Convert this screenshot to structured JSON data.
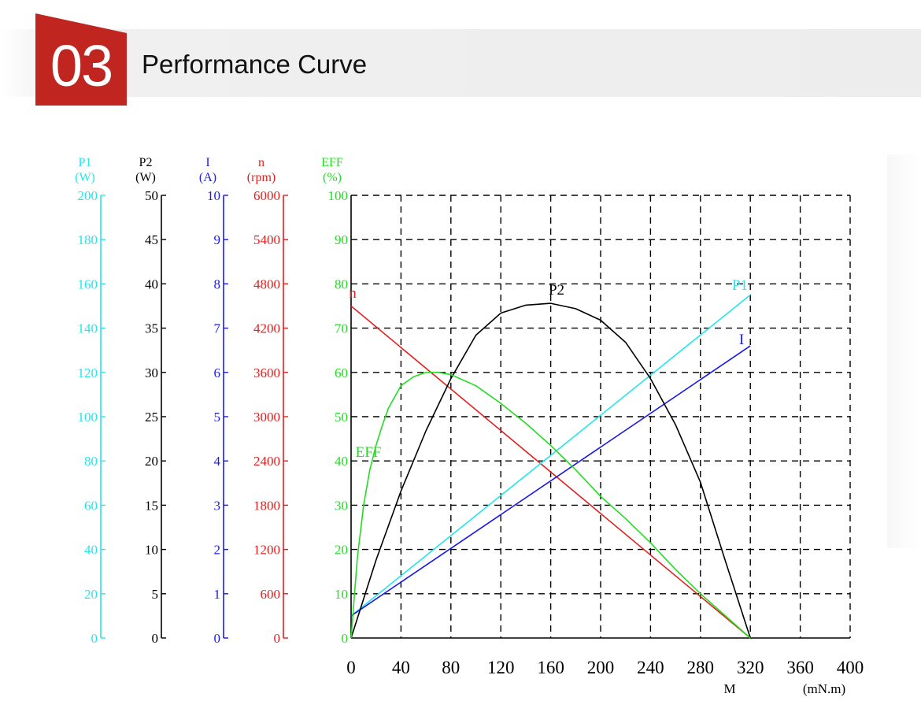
{
  "header": {
    "section_number": "03",
    "title": "Performance Curve",
    "badge_color": "#c0251f"
  },
  "colors": {
    "p1": "#25e6ee",
    "p2": "#000000",
    "i": "#1a1ae6",
    "n": "#e11f1f",
    "eff": "#22dd22"
  },
  "chart_data": {
    "type": "line",
    "x_axis": {
      "name": "M",
      "unit": "(mN.m)",
      "range": [
        0,
        400
      ],
      "ticks": [
        "0",
        "40",
        "80",
        "120",
        "160",
        "200",
        "240",
        "280",
        "320",
        "360",
        "400"
      ]
    },
    "y_axes": [
      {
        "key": "p1",
        "name": "P1",
        "unit": "(W)",
        "range": [
          0,
          200
        ],
        "ticks": [
          "0",
          "20",
          "40",
          "60",
          "80",
          "100",
          "120",
          "140",
          "160",
          "180",
          "200"
        ]
      },
      {
        "key": "p2",
        "name": "P2",
        "unit": "(W)",
        "range": [
          0,
          50
        ],
        "ticks": [
          "0",
          "5",
          "10",
          "15",
          "20",
          "25",
          "30",
          "35",
          "40",
          "45",
          "50"
        ]
      },
      {
        "key": "i",
        "name": "I",
        "unit": "(A)",
        "range": [
          0,
          10
        ],
        "ticks": [
          "0",
          "1",
          "2",
          "3",
          "4",
          "5",
          "6",
          "7",
          "8",
          "9",
          "10"
        ]
      },
      {
        "key": "n",
        "name": "n",
        "unit": "(rpm)",
        "range": [
          0,
          6000
        ],
        "ticks": [
          "0",
          "600",
          "1200",
          "1800",
          "2400",
          "3000",
          "3600",
          "4200",
          "4800",
          "5400",
          "6000"
        ]
      },
      {
        "key": "eff",
        "name": "EFF",
        "unit": "(%)",
        "range": [
          0,
          100
        ],
        "ticks": [
          "0",
          "10",
          "20",
          "30",
          "40",
          "50",
          "60",
          "70",
          "80",
          "90",
          "100"
        ]
      }
    ],
    "grid": "dashed",
    "series": [
      {
        "key": "n",
        "name": "n",
        "axis": "n",
        "x": [
          0,
          320
        ],
        "values": [
          4500,
          0
        ]
      },
      {
        "key": "p1",
        "name": "P1",
        "axis": "p1",
        "x": [
          0,
          320
        ],
        "values": [
          10,
          155
        ]
      },
      {
        "key": "i",
        "name": "I",
        "axis": "i",
        "x": [
          0,
          320
        ],
        "values": [
          0.5,
          6.6
        ]
      },
      {
        "key": "p2",
        "name": "P2",
        "axis": "p2",
        "x": [
          0,
          20,
          40,
          60,
          80,
          100,
          120,
          140,
          160,
          180,
          200,
          220,
          240,
          260,
          280,
          300,
          320
        ],
        "values": [
          0,
          8.8,
          16.6,
          23.4,
          29.3,
          34.2,
          36.7,
          37.6,
          37.8,
          37.2,
          35.9,
          33.4,
          29.3,
          24.1,
          17.6,
          8.7,
          0
        ]
      },
      {
        "key": "eff",
        "name": "EFF",
        "axis": "eff",
        "x": [
          0,
          5,
          10,
          15,
          20,
          25,
          30,
          40,
          50,
          60,
          70,
          80,
          100,
          120,
          140,
          160,
          180,
          200,
          220,
          240,
          260,
          280,
          300,
          320
        ],
        "values": [
          0,
          18,
          30,
          38,
          43.5,
          48,
          52,
          57,
          59,
          60,
          60,
          59.5,
          57,
          53,
          48.5,
          43.5,
          38,
          32,
          27,
          21.5,
          15.5,
          10,
          5,
          0
        ]
      }
    ]
  }
}
